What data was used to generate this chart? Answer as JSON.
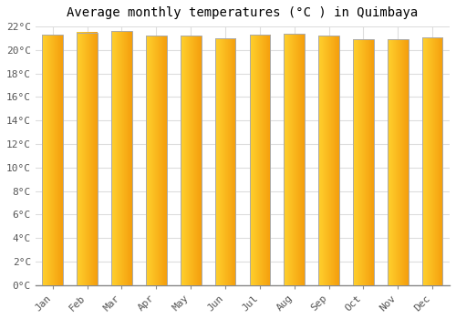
{
  "title": "Average monthly temperatures (°C ) in Quimbaya",
  "months": [
    "Jan",
    "Feb",
    "Mar",
    "Apr",
    "May",
    "Jun",
    "Jul",
    "Aug",
    "Sep",
    "Oct",
    "Nov",
    "Dec"
  ],
  "temperatures": [
    21.3,
    21.5,
    21.6,
    21.2,
    21.2,
    21.0,
    21.3,
    21.4,
    21.2,
    20.9,
    20.9,
    21.1
  ],
  "bar_color_left": "#FFD040",
  "bar_color_right": "#F5A000",
  "bar_edge_color": "#AAAAAA",
  "background_color": "#FFFFFF",
  "plot_bg_color": "#FFFFFF",
  "grid_color": "#DDDDDD",
  "ylim": [
    0,
    22
  ],
  "ytick_step": 2,
  "title_fontsize": 10,
  "tick_fontsize": 8,
  "font_family": "monospace",
  "bar_width": 0.6,
  "gradient_steps": 100
}
